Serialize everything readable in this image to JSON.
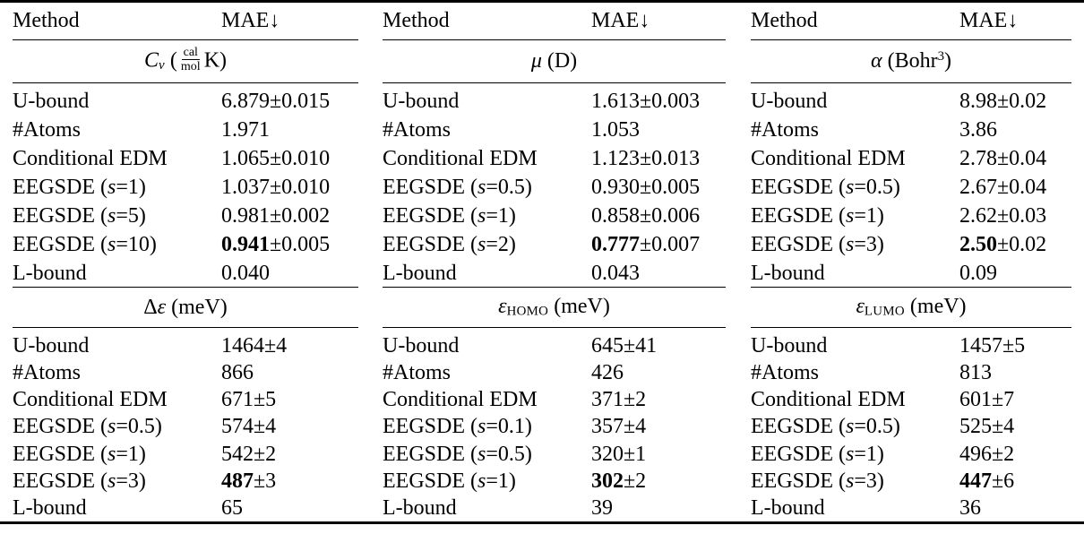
{
  "page": {
    "background": "#ffffff",
    "text_color": "#000000",
    "rule_color": "#000000"
  },
  "header": {
    "method_label": "Method",
    "mae_label": "MAE↓"
  },
  "subtables": [
    {
      "sections": [
        {
          "property": {
            "label": "Cv (cal/mol K)",
            "segments": [
              {
                "t": "C",
                "s": "i"
              },
              {
                "t": "v",
                "s": "i sub"
              },
              {
                "t": " ("
              },
              {
                "frac": {
                  "num": "cal",
                  "den": "mol"
                }
              },
              {
                "t": "K)"
              }
            ]
          },
          "rows": [
            {
              "method": [
                {
                  "t": "U-bound"
                }
              ],
              "value": [
                {
                  "t": "6.879±0.015"
                }
              ]
            },
            {
              "method": [
                {
                  "t": "#Atoms"
                }
              ],
              "value": [
                {
                  "t": "1.971"
                }
              ]
            },
            {
              "method": [
                {
                  "t": "Conditional EDM"
                }
              ],
              "value": [
                {
                  "t": "1.065±0.010"
                }
              ]
            },
            {
              "method": [
                {
                  "t": "EEGSDE ("
                },
                {
                  "t": "s",
                  "s": "i"
                },
                {
                  "t": "=1)"
                }
              ],
              "value": [
                {
                  "t": "1.037±0.010"
                }
              ]
            },
            {
              "method": [
                {
                  "t": "EEGSDE ("
                },
                {
                  "t": "s",
                  "s": "i"
                },
                {
                  "t": "=5)"
                }
              ],
              "value": [
                {
                  "t": "0.981±0.002"
                }
              ]
            },
            {
              "method": [
                {
                  "t": "EEGSDE ("
                },
                {
                  "t": "s",
                  "s": "i"
                },
                {
                  "t": "=10)"
                }
              ],
              "value": [
                {
                  "t": "0.941",
                  "s": "b"
                },
                {
                  "t": "±0.005"
                }
              ]
            },
            {
              "method": [
                {
                  "t": "L-bound"
                }
              ],
              "value": [
                {
                  "t": "0.040"
                }
              ]
            }
          ]
        },
        {
          "property": {
            "label": "Δε (meV)",
            "segments": [
              {
                "t": "Δ"
              },
              {
                "t": "ε",
                "s": "i"
              },
              {
                "t": " (meV)"
              }
            ]
          },
          "rows": [
            {
              "method": [
                {
                  "t": "U-bound"
                }
              ],
              "value": [
                {
                  "t": "1464±4"
                }
              ]
            },
            {
              "method": [
                {
                  "t": "#Atoms"
                }
              ],
              "value": [
                {
                  "t": "866"
                }
              ]
            },
            {
              "method": [
                {
                  "t": "Conditional EDM"
                }
              ],
              "value": [
                {
                  "t": "671±5"
                }
              ]
            },
            {
              "method": [
                {
                  "t": "EEGSDE ("
                },
                {
                  "t": "s",
                  "s": "i"
                },
                {
                  "t": "=0.5)"
                }
              ],
              "value": [
                {
                  "t": "574±4"
                }
              ]
            },
            {
              "method": [
                {
                  "t": "EEGSDE ("
                },
                {
                  "t": "s",
                  "s": "i"
                },
                {
                  "t": "=1)"
                }
              ],
              "value": [
                {
                  "t": "542±2"
                }
              ]
            },
            {
              "method": [
                {
                  "t": "EEGSDE ("
                },
                {
                  "t": "s",
                  "s": "i"
                },
                {
                  "t": "=3)"
                }
              ],
              "value": [
                {
                  "t": "487",
                  "s": "b"
                },
                {
                  "t": "±3"
                }
              ]
            },
            {
              "method": [
                {
                  "t": "L-bound"
                }
              ],
              "value": [
                {
                  "t": "65"
                }
              ]
            }
          ]
        }
      ]
    },
    {
      "sections": [
        {
          "property": {
            "label": "μ (D)",
            "segments": [
              {
                "t": "μ",
                "s": "i"
              },
              {
                "t": " (D)"
              }
            ]
          },
          "rows": [
            {
              "method": [
                {
                  "t": "U-bound"
                }
              ],
              "value": [
                {
                  "t": "1.613±0.003"
                }
              ]
            },
            {
              "method": [
                {
                  "t": "#Atoms"
                }
              ],
              "value": [
                {
                  "t": "1.053"
                }
              ]
            },
            {
              "method": [
                {
                  "t": "Conditional EDM"
                }
              ],
              "value": [
                {
                  "t": "1.123±0.013"
                }
              ]
            },
            {
              "method": [
                {
                  "t": "EEGSDE ("
                },
                {
                  "t": "s",
                  "s": "i"
                },
                {
                  "t": "=0.5)"
                }
              ],
              "value": [
                {
                  "t": "0.930±0.005"
                }
              ]
            },
            {
              "method": [
                {
                  "t": "EEGSDE ("
                },
                {
                  "t": "s",
                  "s": "i"
                },
                {
                  "t": "=1)"
                }
              ],
              "value": [
                {
                  "t": "0.858±0.006"
                }
              ]
            },
            {
              "method": [
                {
                  "t": "EEGSDE ("
                },
                {
                  "t": "s",
                  "s": "i"
                },
                {
                  "t": "=2)"
                }
              ],
              "value": [
                {
                  "t": "0.777",
                  "s": "b"
                },
                {
                  "t": "±0.007"
                }
              ]
            },
            {
              "method": [
                {
                  "t": "L-bound"
                }
              ],
              "value": [
                {
                  "t": "0.043"
                }
              ]
            }
          ]
        },
        {
          "property": {
            "label": "εHOMO (meV)",
            "segments": [
              {
                "t": "ε",
                "s": "i"
              },
              {
                "t": "HOMO",
                "s": "sub"
              },
              {
                "t": " (meV)"
              }
            ]
          },
          "rows": [
            {
              "method": [
                {
                  "t": "U-bound"
                }
              ],
              "value": [
                {
                  "t": "645±41"
                }
              ]
            },
            {
              "method": [
                {
                  "t": "#Atoms"
                }
              ],
              "value": [
                {
                  "t": "426"
                }
              ]
            },
            {
              "method": [
                {
                  "t": "Conditional EDM"
                }
              ],
              "value": [
                {
                  "t": "371±2"
                }
              ]
            },
            {
              "method": [
                {
                  "t": "EEGSDE ("
                },
                {
                  "t": "s",
                  "s": "i"
                },
                {
                  "t": "=0.1)"
                }
              ],
              "value": [
                {
                  "t": "357±4"
                }
              ]
            },
            {
              "method": [
                {
                  "t": "EEGSDE ("
                },
                {
                  "t": "s",
                  "s": "i"
                },
                {
                  "t": "=0.5)"
                }
              ],
              "value": [
                {
                  "t": "320±1"
                }
              ]
            },
            {
              "method": [
                {
                  "t": "EEGSDE ("
                },
                {
                  "t": "s",
                  "s": "i"
                },
                {
                  "t": "=1)"
                }
              ],
              "value": [
                {
                  "t": "302",
                  "s": "b"
                },
                {
                  "t": "±2"
                }
              ]
            },
            {
              "method": [
                {
                  "t": "L-bound"
                }
              ],
              "value": [
                {
                  "t": "39"
                }
              ]
            }
          ]
        }
      ]
    },
    {
      "sections": [
        {
          "property": {
            "label": "α (Bohr3)",
            "segments": [
              {
                "t": "α",
                "s": "i"
              },
              {
                "t": " (Bohr"
              },
              {
                "t": "3",
                "s": "sup"
              },
              {
                "t": ")"
              }
            ]
          },
          "rows": [
            {
              "method": [
                {
                  "t": "U-bound"
                }
              ],
              "value": [
                {
                  "t": "8.98±0.02"
                }
              ]
            },
            {
              "method": [
                {
                  "t": "#Atoms"
                }
              ],
              "value": [
                {
                  "t": "3.86"
                }
              ]
            },
            {
              "method": [
                {
                  "t": "Conditional EDM"
                }
              ],
              "value": [
                {
                  "t": "2.78±0.04"
                }
              ]
            },
            {
              "method": [
                {
                  "t": "EEGSDE ("
                },
                {
                  "t": "s",
                  "s": "i"
                },
                {
                  "t": "=0.5)"
                }
              ],
              "value": [
                {
                  "t": "2.67±0.04"
                }
              ]
            },
            {
              "method": [
                {
                  "t": "EEGSDE ("
                },
                {
                  "t": "s",
                  "s": "i"
                },
                {
                  "t": "=1)"
                }
              ],
              "value": [
                {
                  "t": "2.62±0.03"
                }
              ]
            },
            {
              "method": [
                {
                  "t": "EEGSDE ("
                },
                {
                  "t": "s",
                  "s": "i"
                },
                {
                  "t": "=3)"
                }
              ],
              "value": [
                {
                  "t": "2.50",
                  "s": "b"
                },
                {
                  "t": "±0.02"
                }
              ]
            },
            {
              "method": [
                {
                  "t": "L-bound"
                }
              ],
              "value": [
                {
                  "t": "0.09"
                }
              ]
            }
          ]
        },
        {
          "property": {
            "label": "εLUMO (meV)",
            "segments": [
              {
                "t": "ε",
                "s": "i"
              },
              {
                "t": "LUMO",
                "s": "sub"
              },
              {
                "t": " (meV)"
              }
            ]
          },
          "rows": [
            {
              "method": [
                {
                  "t": "U-bound"
                }
              ],
              "value": [
                {
                  "t": "1457±5"
                }
              ]
            },
            {
              "method": [
                {
                  "t": "#Atoms"
                }
              ],
              "value": [
                {
                  "t": "813"
                }
              ]
            },
            {
              "method": [
                {
                  "t": "Conditional EDM"
                }
              ],
              "value": [
                {
                  "t": "601±7"
                }
              ]
            },
            {
              "method": [
                {
                  "t": "EEGSDE ("
                },
                {
                  "t": "s",
                  "s": "i"
                },
                {
                  "t": "=0.5)"
                }
              ],
              "value": [
                {
                  "t": "525±4"
                }
              ]
            },
            {
              "method": [
                {
                  "t": "EEGSDE ("
                },
                {
                  "t": "s",
                  "s": "i"
                },
                {
                  "t": "=1)"
                }
              ],
              "value": [
                {
                  "t": "496±2"
                }
              ]
            },
            {
              "method": [
                {
                  "t": "EEGSDE ("
                },
                {
                  "t": "s",
                  "s": "i"
                },
                {
                  "t": "=3)"
                }
              ],
              "value": [
                {
                  "t": "447",
                  "s": "b"
                },
                {
                  "t": "±6"
                }
              ]
            },
            {
              "method": [
                {
                  "t": "L-bound"
                }
              ],
              "value": [
                {
                  "t": "36"
                }
              ]
            }
          ]
        }
      ]
    }
  ]
}
